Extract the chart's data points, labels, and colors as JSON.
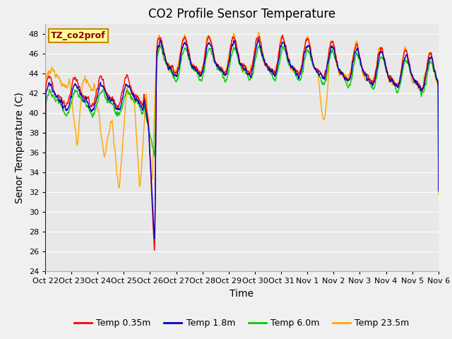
{
  "title": "CO2 Profile Sensor Temperature",
  "ylabel": "Senor Temperature (C)",
  "xlabel": "Time",
  "ylim": [
    24,
    49
  ],
  "yticks": [
    24,
    26,
    28,
    30,
    32,
    34,
    36,
    38,
    40,
    42,
    44,
    46,
    48
  ],
  "xtick_labels": [
    "Oct 22",
    "Oct 23",
    "Oct 24",
    "Oct 25",
    "Oct 26",
    "Oct 27",
    "Oct 28",
    "Oct 29",
    "Oct 30",
    "Oct 31",
    "Nov 1",
    "Nov 2",
    "Nov 3",
    "Nov 4",
    "Nov 5",
    "Nov 6"
  ],
  "colors": {
    "red": "#FF0000",
    "blue": "#0000CD",
    "green": "#00CC00",
    "orange": "#FFA500"
  },
  "legend_labels": [
    "Temp 0.35m",
    "Temp 1.8m",
    "Temp 6.0m",
    "Temp 23.5m"
  ],
  "legend_colors": [
    "#FF0000",
    "#0000CD",
    "#00CC00",
    "#FFA500"
  ],
  "annotation_text": "TZ_co2prof",
  "annotation_bg": "#FFFF99",
  "annotation_border": "#CC8800",
  "plot_bg": "#E8E8E8",
  "fig_bg": "#F0F0F0",
  "grid_color": "#FFFFFF",
  "title_fontsize": 12,
  "axis_fontsize": 10,
  "tick_fontsize": 8,
  "linewidth": 1.0
}
